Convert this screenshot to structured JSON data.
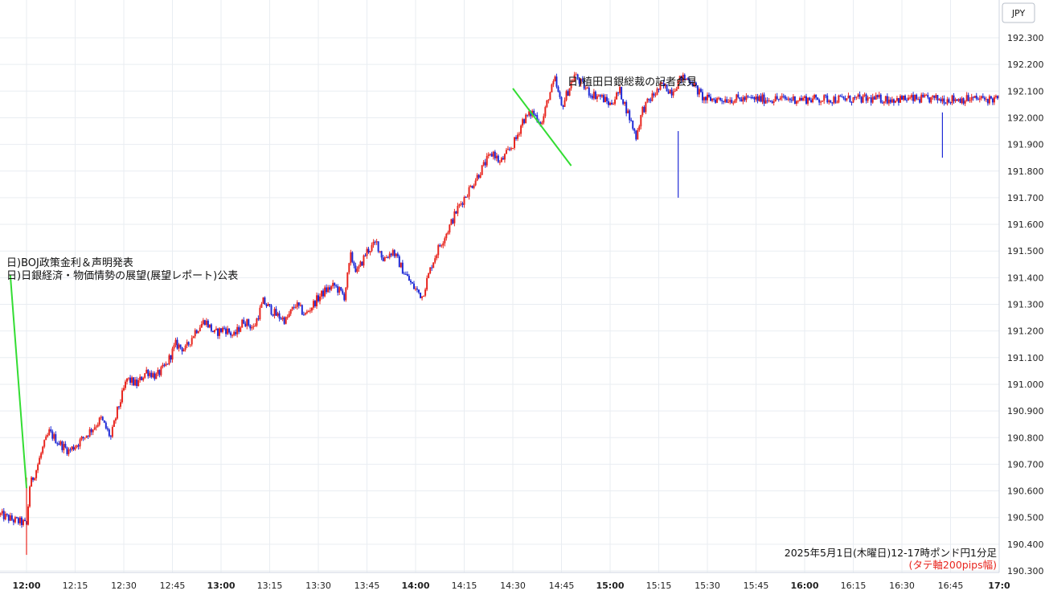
{
  "chart_data": {
    "type": "candlestick",
    "currency_label": "JPY",
    "ylim": [
      190.28,
      192.44
    ],
    "y_ticks": [
      190.3,
      190.4,
      190.5,
      190.6,
      190.7,
      190.8,
      190.9,
      191.0,
      191.1,
      191.2,
      191.3,
      191.4,
      191.5,
      191.6,
      191.7,
      191.8,
      191.9,
      192.0,
      192.1,
      192.2,
      192.3
    ],
    "y_tick_labels": [
      "190.300",
      "190.400",
      "190.500",
      "190.600",
      "190.700",
      "190.800",
      "190.900",
      "191.000",
      "191.100",
      "191.200",
      "191.300",
      "191.400",
      "191.500",
      "191.600",
      "191.700",
      "191.800",
      "191.900",
      "192.000",
      "192.100",
      "192.200",
      "192.300"
    ],
    "x_ticks": [
      {
        "t": 720,
        "label": "12:00",
        "bold": true
      },
      {
        "t": 735,
        "label": "12:15",
        "bold": false
      },
      {
        "t": 750,
        "label": "12:30",
        "bold": false
      },
      {
        "t": 765,
        "label": "12:45",
        "bold": false
      },
      {
        "t": 780,
        "label": "13:00",
        "bold": true
      },
      {
        "t": 795,
        "label": "13:15",
        "bold": false
      },
      {
        "t": 810,
        "label": "13:30",
        "bold": false
      },
      {
        "t": 825,
        "label": "13:45",
        "bold": false
      },
      {
        "t": 840,
        "label": "14:00",
        "bold": true
      },
      {
        "t": 855,
        "label": "14:15",
        "bold": false
      },
      {
        "t": 870,
        "label": "14:30",
        "bold": false
      },
      {
        "t": 885,
        "label": "14:45",
        "bold": false
      },
      {
        "t": 900,
        "label": "15:00",
        "bold": true
      },
      {
        "t": 915,
        "label": "15:15",
        "bold": false
      },
      {
        "t": 930,
        "label": "15:30",
        "bold": false
      },
      {
        "t": 945,
        "label": "15:45",
        "bold": false
      },
      {
        "t": 960,
        "label": "16:00",
        "bold": true
      },
      {
        "t": 975,
        "label": "16:15",
        "bold": false
      },
      {
        "t": 990,
        "label": "16:30",
        "bold": false
      },
      {
        "t": 1005,
        "label": "16:45",
        "bold": false
      },
      {
        "t": 1020,
        "label": "17:0",
        "bold": true
      }
    ],
    "up_color": "#e8261f",
    "down_color": "#1f2bd6",
    "annotation_color": "#33dd33",
    "price_path": [
      [
        712,
        190.51
      ],
      [
        716,
        190.49
      ],
      [
        719,
        190.48
      ],
      [
        720,
        190.47
      ],
      [
        721,
        190.62
      ],
      [
        723,
        190.68
      ],
      [
        725,
        190.76
      ],
      [
        727,
        190.82
      ],
      [
        730,
        190.78
      ],
      [
        733,
        190.75
      ],
      [
        736,
        190.78
      ],
      [
        740,
        190.83
      ],
      [
        743,
        190.87
      ],
      [
        746,
        190.8
      ],
      [
        748,
        190.9
      ],
      [
        751,
        191.02
      ],
      [
        754,
        191.0
      ],
      [
        757,
        191.05
      ],
      [
        760,
        191.03
      ],
      [
        763,
        191.07
      ],
      [
        766,
        191.15
      ],
      [
        769,
        191.13
      ],
      [
        772,
        191.2
      ],
      [
        775,
        191.24
      ],
      [
        778,
        191.19
      ],
      [
        781,
        191.21
      ],
      [
        784,
        191.18
      ],
      [
        787,
        191.24
      ],
      [
        790,
        191.21
      ],
      [
        793,
        191.31
      ],
      [
        797,
        191.26
      ],
      [
        800,
        191.24
      ],
      [
        803,
        191.3
      ],
      [
        806,
        191.26
      ],
      [
        809,
        191.31
      ],
      [
        812,
        191.35
      ],
      [
        815,
        191.37
      ],
      [
        818,
        191.33
      ],
      [
        820,
        191.48
      ],
      [
        822,
        191.42
      ],
      [
        825,
        191.5
      ],
      [
        828,
        191.53
      ],
      [
        830,
        191.47
      ],
      [
        833,
        191.5
      ],
      [
        836,
        191.43
      ],
      [
        839,
        191.37
      ],
      [
        842,
        191.33
      ],
      [
        845,
        191.45
      ],
      [
        847,
        191.51
      ],
      [
        850,
        191.58
      ],
      [
        853,
        191.66
      ],
      [
        856,
        191.72
      ],
      [
        858,
        191.76
      ],
      [
        860,
        191.8
      ],
      [
        862,
        191.84
      ],
      [
        864,
        191.87
      ],
      [
        866,
        191.83
      ],
      [
        869,
        191.88
      ],
      [
        871,
        191.92
      ],
      [
        873,
        191.99
      ],
      [
        876,
        192.02
      ],
      [
        879,
        191.98
      ],
      [
        881,
        192.08
      ],
      [
        883,
        192.14
      ],
      [
        885,
        192.04
      ],
      [
        887,
        192.1
      ],
      [
        889,
        192.16
      ],
      [
        891,
        192.13
      ],
      [
        894,
        192.09
      ],
      [
        897,
        192.08
      ],
      [
        900,
        192.05
      ],
      [
        903,
        192.1
      ],
      [
        906,
        192.0
      ],
      [
        908,
        191.93
      ],
      [
        910,
        192.03
      ],
      [
        913,
        192.08
      ],
      [
        916,
        192.12
      ],
      [
        919,
        192.1
      ],
      [
        922,
        192.15
      ],
      [
        925,
        192.14
      ],
      [
        927,
        192.1
      ],
      [
        929,
        192.07
      ]
    ],
    "annotations": [
      {
        "lines": [
          "日)BOJ政策金利＆声明発表",
          "日)日銀経済・物価情勢の展望(展望レポート)公表"
        ],
        "line_from": [
          715,
          191.41
        ],
        "line_to": [
          720,
          190.61
        ]
      },
      {
        "lines": [
          "日)植田日銀総裁の記者会見"
        ],
        "line_from": [
          870,
          192.11
        ],
        "line_to": [
          888,
          191.82
        ]
      }
    ],
    "caption_lines": [
      "2025年5月1日(木曜日)12-17時ポンド円1分足",
      "(タテ軸200pips幅)"
    ]
  }
}
